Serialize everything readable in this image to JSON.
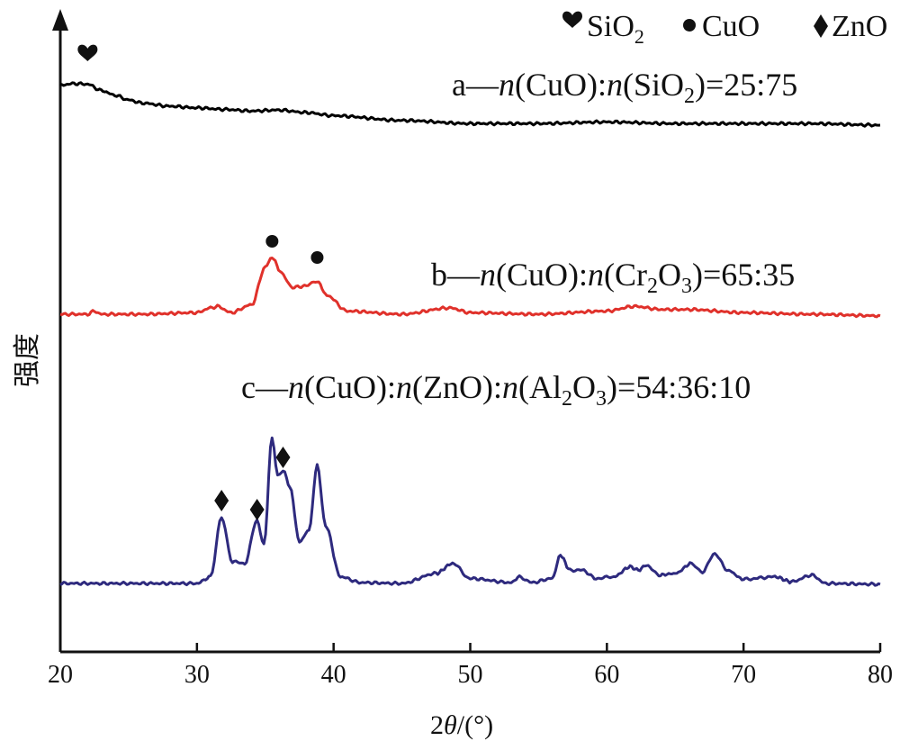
{
  "chart_data": {
    "type": "line",
    "xlabel": "2θ/(°)",
    "ylabel": "强度",
    "xlim": [
      20,
      80
    ],
    "xticks": [
      20,
      30,
      40,
      50,
      60,
      70,
      80
    ],
    "legend": [
      {
        "label": "SiO2",
        "marker": "heart"
      },
      {
        "label": "CuO",
        "marker": "circle"
      },
      {
        "label": "ZnO",
        "marker": "diamond"
      }
    ],
    "series": [
      {
        "name": "a—n(CuO):n(SiO2)=25:75",
        "color": "#000000",
        "x": [
          20,
          21,
          22,
          23,
          24,
          25,
          26,
          28,
          30,
          32,
          34,
          36,
          38,
          40,
          45,
          50,
          55,
          60,
          65,
          70,
          75,
          80
        ],
        "y": [
          0.67,
          0.72,
          0.7,
          0.5,
          0.35,
          0.2,
          0.1,
          0.0,
          -0.05,
          -0.1,
          -0.15,
          -0.12,
          -0.2,
          -0.3,
          -0.45,
          -0.55,
          -0.55,
          -0.5,
          -0.55,
          -0.55,
          -0.55,
          -0.6
        ]
      },
      {
        "name": "b—n(CuO):n(Cr2O3)=65:35",
        "color": "#e0312b",
        "x": [
          20,
          22,
          22.5,
          23,
          26,
          30,
          31,
          31.5,
          32.5,
          34,
          35,
          35.5,
          36.2,
          37,
          38,
          38.8,
          39.5,
          41,
          45,
          48.5,
          50,
          55,
          60,
          62,
          64,
          66,
          70,
          75,
          80
        ],
        "y": [
          0.0,
          0.0,
          0.1,
          0.0,
          0.0,
          0.05,
          0.2,
          0.25,
          0.05,
          0.3,
          1.5,
          1.8,
          1.3,
          0.85,
          0.9,
          1.05,
          0.6,
          0.1,
          0.0,
          0.2,
          0.05,
          0.0,
          0.1,
          0.25,
          0.15,
          0.15,
          0.05,
          0.0,
          -0.05
        ]
      },
      {
        "name": "c—n(CuO):n(ZnO):n(Al2O3)=54:36:10",
        "color": "#2e2a7e",
        "x": [
          20,
          25,
          30,
          31,
          31.8,
          32.6,
          33.5,
          34.4,
          34.9,
          35.5,
          35.9,
          36.3,
          36.8,
          37.5,
          38.2,
          38.8,
          39.4,
          40.5,
          42,
          45,
          47.5,
          48.7,
          50,
          53,
          53.6,
          54.5,
          56,
          56.6,
          57.3,
          58.2,
          59.2,
          60.5,
          61.7,
          62.3,
          62.9,
          63.8,
          65,
          66.2,
          67,
          67.9,
          68.8,
          70,
          72.3,
          73.5,
          75,
          76,
          80
        ],
        "y": [
          0.0,
          0.0,
          0.0,
          0.4,
          4.0,
          1.3,
          1.2,
          3.8,
          2.3,
          8.8,
          6.5,
          6.8,
          5.8,
          2.5,
          3.2,
          7.1,
          3.5,
          0.4,
          0.05,
          0.0,
          0.6,
          1.2,
          0.3,
          0.05,
          0.4,
          0.05,
          0.3,
          1.7,
          0.8,
          0.8,
          0.3,
          0.4,
          1.0,
          0.8,
          1.1,
          0.5,
          0.6,
          1.2,
          0.7,
          1.8,
          0.8,
          0.25,
          0.4,
          0.1,
          0.5,
          0.0,
          -0.05
        ]
      }
    ],
    "annotations": [
      {
        "marker": "heart",
        "x": 22
      },
      {
        "marker": "circle",
        "x": 35.5
      },
      {
        "marker": "circle",
        "x": 38.8
      },
      {
        "marker": "diamond",
        "x": 31.8
      },
      {
        "marker": "diamond",
        "x": 34.4
      },
      {
        "marker": "diamond",
        "x": 36.3
      }
    ]
  }
}
